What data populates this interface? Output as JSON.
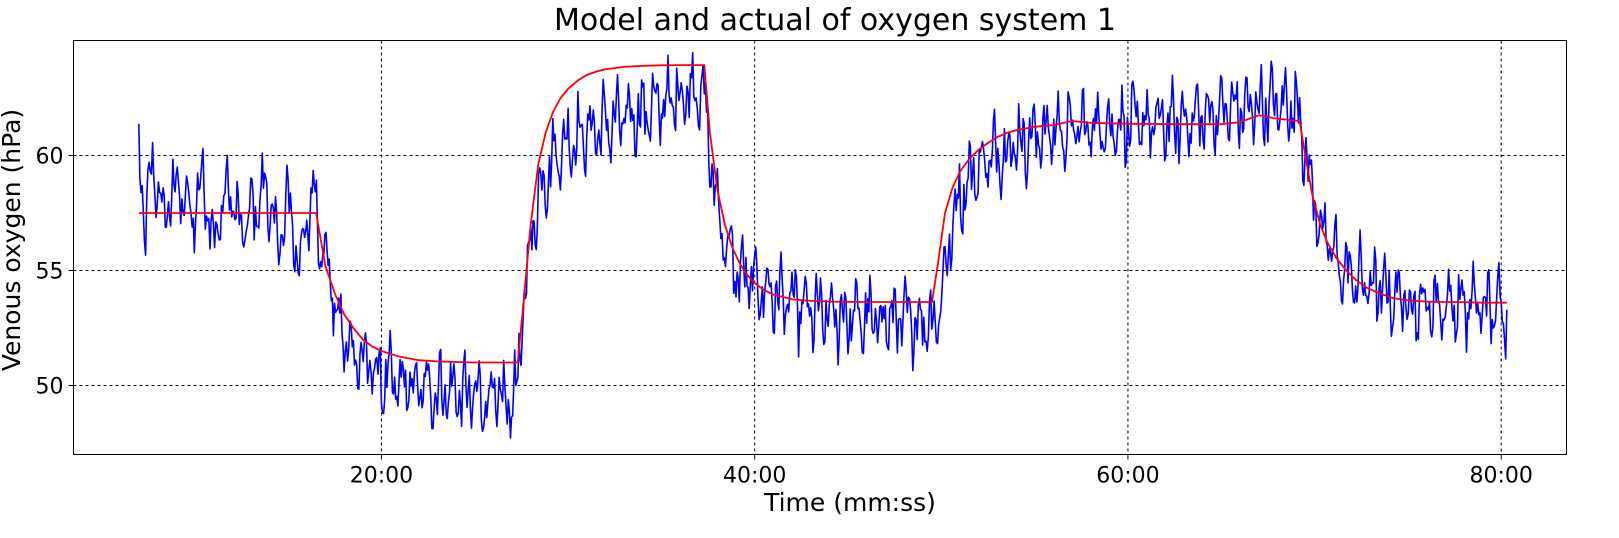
{
  "chart_data": {
    "type": "line",
    "title": "Model and actual of oxygen system 1",
    "xlabel": "Time (mm:ss)",
    "ylabel": "Venous oxygen (hPa)",
    "x_unit": "minutes",
    "xlim": [
      3.5,
      83.5
    ],
    "ylim": [
      47,
      65
    ],
    "x_ticks": [
      20,
      40,
      60,
      80
    ],
    "x_tick_labels": [
      "20:00",
      "40:00",
      "60:00",
      "80:00"
    ],
    "y_ticks": [
      50,
      55,
      60
    ],
    "y_tick_labels": [
      "50",
      "55",
      "60"
    ],
    "grid": true,
    "legend": "none",
    "series": [
      {
        "color": "#0000ff",
        "style": "noisy",
        "points": [
          [
            7.0,
            60.1
          ],
          [
            7.3,
            57.0
          ],
          [
            7.8,
            59.6
          ],
          [
            8.3,
            57.2
          ],
          [
            9.0,
            58.8
          ],
          [
            9.8,
            57.3
          ],
          [
            10.5,
            59.1
          ],
          [
            11.0,
            56.2
          ],
          [
            11.8,
            58.7
          ],
          [
            12.5,
            56.6
          ],
          [
            13.0,
            57.4
          ],
          [
            13.8,
            58.6
          ],
          [
            14.5,
            56.0
          ],
          [
            15.0,
            58.1
          ],
          [
            15.6,
            55.2
          ],
          [
            16.0,
            57.0
          ],
          [
            16.4,
            58.6
          ],
          [
            16.8,
            56.0
          ],
          [
            17.2,
            55.0
          ],
          [
            17.6,
            53.0
          ],
          [
            18.0,
            52.0
          ],
          [
            18.5,
            51.5
          ],
          [
            19.2,
            51.0
          ],
          [
            20.0,
            50.3
          ],
          [
            21.0,
            50.0
          ],
          [
            22.0,
            49.9
          ],
          [
            23.0,
            49.8
          ],
          [
            24.0,
            49.7
          ],
          [
            25.0,
            49.5
          ],
          [
            26.0,
            49.4
          ],
          [
            26.8,
            49.2
          ],
          [
            27.2,
            49.6
          ],
          [
            27.6,
            53.0
          ],
          [
            28.0,
            56.5
          ],
          [
            28.6,
            58.8
          ],
          [
            29.3,
            60.0
          ],
          [
            30.0,
            60.6
          ],
          [
            31.0,
            61.0
          ],
          [
            32.0,
            61.3
          ],
          [
            33.0,
            61.6
          ],
          [
            34.0,
            61.9
          ],
          [
            35.0,
            62.2
          ],
          [
            36.0,
            62.6
          ],
          [
            36.8,
            63.0
          ],
          [
            37.3,
            62.5
          ],
          [
            37.6,
            60.0
          ],
          [
            38.0,
            57.8
          ],
          [
            38.5,
            56.0
          ],
          [
            39.0,
            55.0
          ],
          [
            40.0,
            54.4
          ],
          [
            41.0,
            54.0
          ],
          [
            42.0,
            53.6
          ],
          [
            43.0,
            53.2
          ],
          [
            44.0,
            53.0
          ],
          [
            45.0,
            53.0
          ],
          [
            46.0,
            52.9
          ],
          [
            47.0,
            52.9
          ],
          [
            48.0,
            52.9
          ],
          [
            49.0,
            52.8
          ],
          [
            49.8,
            52.9
          ],
          [
            50.2,
            55.0
          ],
          [
            50.8,
            57.8
          ],
          [
            51.5,
            59.0
          ],
          [
            52.5,
            59.9
          ],
          [
            53.5,
            60.3
          ],
          [
            54.5,
            60.7
          ],
          [
            55.5,
            61.0
          ],
          [
            56.5,
            61.1
          ],
          [
            57.5,
            61.2
          ],
          [
            58.5,
            61.3
          ],
          [
            59.5,
            61.3
          ],
          [
            60.5,
            61.4
          ],
          [
            61.5,
            61.4
          ],
          [
            62.5,
            61.4
          ],
          [
            63.5,
            61.6
          ],
          [
            64.5,
            61.8
          ],
          [
            65.5,
            62.0
          ],
          [
            66.5,
            62.0
          ],
          [
            67.5,
            62.2
          ],
          [
            68.5,
            62.2
          ],
          [
            69.2,
            62.0
          ],
          [
            69.6,
            59.5
          ],
          [
            70.0,
            58.0
          ],
          [
            70.5,
            56.5
          ],
          [
            71.5,
            55.0
          ],
          [
            72.5,
            54.5
          ],
          [
            74.0,
            54.0
          ],
          [
            75.5,
            53.5
          ],
          [
            77.0,
            53.5
          ],
          [
            78.5,
            53.5
          ],
          [
            80.3,
            53.3
          ]
        ]
      },
      {
        "color": "#ff0000",
        "style": "smooth",
        "points": [
          [
            7.0,
            57.5
          ],
          [
            8.0,
            57.5
          ],
          [
            10.0,
            57.5
          ],
          [
            12.0,
            57.5
          ],
          [
            14.0,
            57.5
          ],
          [
            16.0,
            57.5
          ],
          [
            16.5,
            57.5
          ],
          [
            17.0,
            55.2
          ],
          [
            17.5,
            54.0
          ],
          [
            18.0,
            53.1
          ],
          [
            18.5,
            52.5
          ],
          [
            19.0,
            52.0
          ],
          [
            19.5,
            51.7
          ],
          [
            20.0,
            51.5
          ],
          [
            21.0,
            51.25
          ],
          [
            22.0,
            51.1
          ],
          [
            23.0,
            51.05
          ],
          [
            24.0,
            51.02
          ],
          [
            25.0,
            51.0
          ],
          [
            26.0,
            51.0
          ],
          [
            27.3,
            51.0
          ],
          [
            27.6,
            53.5
          ],
          [
            28.0,
            57.0
          ],
          [
            28.4,
            59.6
          ],
          [
            28.8,
            61.0
          ],
          [
            29.2,
            61.9
          ],
          [
            29.6,
            62.5
          ],
          [
            30.0,
            62.9
          ],
          [
            30.5,
            63.25
          ],
          [
            31.0,
            63.5
          ],
          [
            31.5,
            63.65
          ],
          [
            32.0,
            63.75
          ],
          [
            33.0,
            63.85
          ],
          [
            34.0,
            63.9
          ],
          [
            35.0,
            63.92
          ],
          [
            36.0,
            63.93
          ],
          [
            37.3,
            63.93
          ],
          [
            37.6,
            61.0
          ],
          [
            38.0,
            58.5
          ],
          [
            38.4,
            57.0
          ],
          [
            38.8,
            56.0
          ],
          [
            39.2,
            55.3
          ],
          [
            39.6,
            54.8
          ],
          [
            40.0,
            54.45
          ],
          [
            40.5,
            54.15
          ],
          [
            41.0,
            53.95
          ],
          [
            41.5,
            53.85
          ],
          [
            42.0,
            53.75
          ],
          [
            43.0,
            53.68
          ],
          [
            44.0,
            53.65
          ],
          [
            45.0,
            53.64
          ],
          [
            46.0,
            53.63
          ],
          [
            47.0,
            53.63
          ],
          [
            48.0,
            53.63
          ],
          [
            49.5,
            53.63
          ],
          [
            49.8,
            55.2
          ],
          [
            50.2,
            57.5
          ],
          [
            50.6,
            58.6
          ],
          [
            51.0,
            59.3
          ],
          [
            51.5,
            59.85
          ],
          [
            52.0,
            60.25
          ],
          [
            52.5,
            60.55
          ],
          [
            53.0,
            60.8
          ],
          [
            53.5,
            60.98
          ],
          [
            54.0,
            61.1
          ],
          [
            55.0,
            61.25
          ],
          [
            56.0,
            61.32
          ],
          [
            57.0,
            61.5
          ],
          [
            58.0,
            61.42
          ],
          [
            59.0,
            61.4
          ],
          [
            60.0,
            61.38
          ],
          [
            61.0,
            61.38
          ],
          [
            62.0,
            61.36
          ],
          [
            63.0,
            61.36
          ],
          [
            64.0,
            61.36
          ],
          [
            65.0,
            61.36
          ],
          [
            66.0,
            61.45
          ],
          [
            67.0,
            61.75
          ],
          [
            68.0,
            61.6
          ],
          [
            69.2,
            61.5
          ],
          [
            69.5,
            60.0
          ],
          [
            69.9,
            58.2
          ],
          [
            70.3,
            57.0
          ],
          [
            70.7,
            56.2
          ],
          [
            71.2,
            55.5
          ],
          [
            71.7,
            55.0
          ],
          [
            72.2,
            54.6
          ],
          [
            72.8,
            54.25
          ],
          [
            73.5,
            54.0
          ],
          [
            74.2,
            53.8
          ],
          [
            75.0,
            53.7
          ],
          [
            76.0,
            53.65
          ],
          [
            77.0,
            53.63
          ],
          [
            78.0,
            53.62
          ],
          [
            79.0,
            53.6
          ],
          [
            80.3,
            53.6
          ]
        ]
      }
    ]
  }
}
